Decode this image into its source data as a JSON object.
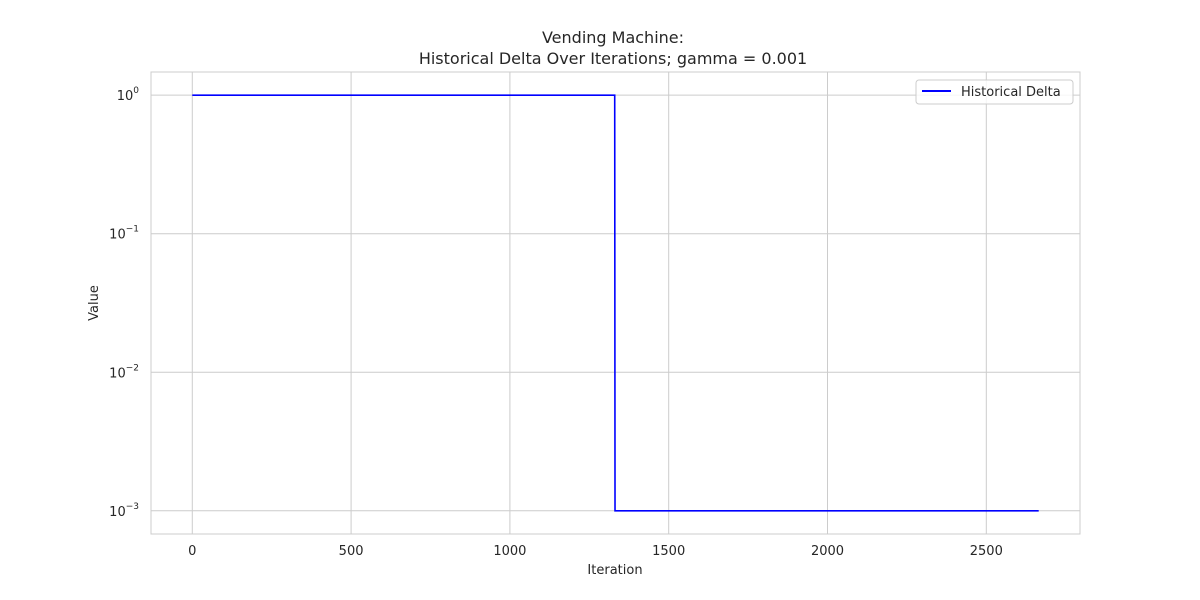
{
  "chart_data": {
    "type": "line",
    "title": [
      "Vending Machine:",
      "Historical Delta Over Iterations; gamma = 0.001"
    ],
    "xlabel": "Iteration",
    "ylabel": "Value",
    "yscale": "log",
    "xlim": [
      -130,
      2795
    ],
    "ylim": [
      0.00068,
      1.47
    ],
    "x_ticks": [
      0,
      500,
      1000,
      1500,
      2000,
      2500
    ],
    "x_tick_labels": [
      "0",
      "500",
      "1000",
      "1500",
      "2000",
      "2500"
    ],
    "y_ticks": [
      0.001,
      0.01,
      0.1,
      1
    ],
    "y_tick_labels": [
      {
        "base": "10",
        "exp": "−3"
      },
      {
        "base": "10",
        "exp": "−2"
      },
      {
        "base": "10",
        "exp": "−1"
      },
      {
        "base": "10",
        "exp": "0"
      }
    ],
    "grid": true,
    "legend_position": "top-right",
    "series": [
      {
        "name": "Historical Delta",
        "color": "#0000ff",
        "x": [
          0,
          1330,
          1331,
          2665
        ],
        "y": [
          1,
          1,
          0.001,
          0.001
        ]
      }
    ]
  }
}
